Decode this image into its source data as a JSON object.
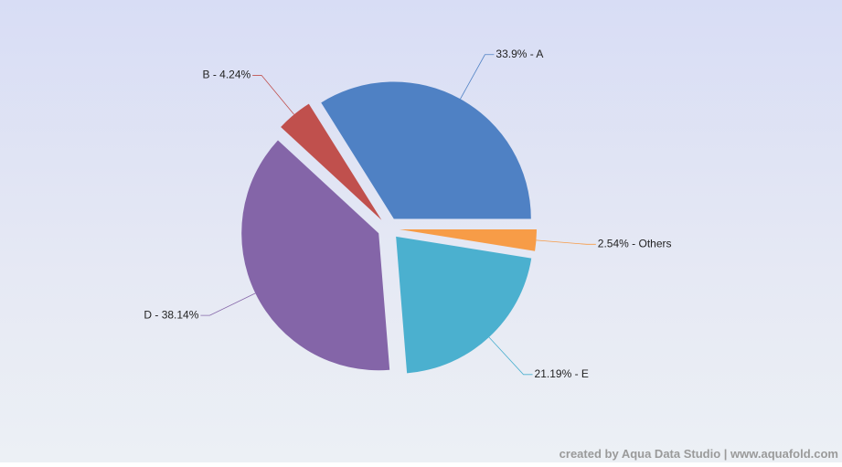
{
  "chart_data": {
    "type": "pie",
    "categories": [
      "A",
      "B",
      "D",
      "E",
      "Others"
    ],
    "values": [
      33.9,
      4.24,
      38.14,
      21.19,
      2.54
    ],
    "value_labels": [
      "33.9% - A",
      "B - 4.24%",
      "D - 38.14%",
      "21.19% - E",
      "2.54% - Others"
    ],
    "colors": [
      "#4f81c4",
      "#c0504d",
      "#8465a8",
      "#4bb0cf",
      "#f79c47"
    ],
    "exploded": true,
    "credit": "created by Aqua Data Studio | www.aquafold.com"
  }
}
